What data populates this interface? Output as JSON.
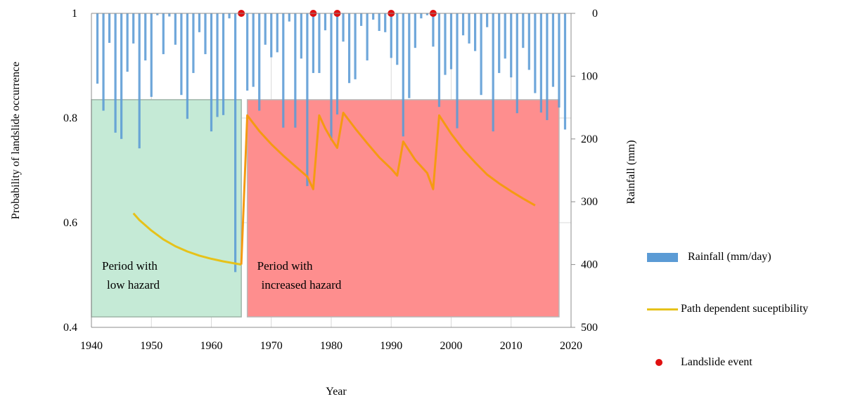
{
  "chart_data": {
    "type": "bar+line",
    "x": {
      "label": "Year",
      "range": [
        1940,
        2020
      ],
      "ticks": [
        "1940",
        "1950",
        "1960",
        "1970",
        "1980",
        "1990",
        "2000",
        "2010",
        "2020"
      ]
    },
    "y_left": {
      "label": "Probability of landslide occurrence",
      "range": [
        0.4,
        1.0
      ],
      "ticks": [
        "0.4",
        "0.6",
        "0.8",
        "1"
      ]
    },
    "y_right": {
      "label": "Rainfall (mm)",
      "range": [
        0,
        500
      ],
      "inverted": true,
      "ticks": [
        "0",
        "100",
        "200",
        "300",
        "400",
        "500"
      ]
    },
    "grid": true,
    "regions": [
      {
        "label_line1": "Period with",
        "label_line2": "low hazard",
        "x_start": 1940,
        "x_end": 1965,
        "color": "#c5ead6"
      },
      {
        "label_line1": "Period with",
        "label_line2": "increased hazard",
        "x_start": 1966,
        "x_end": 2018,
        "color": "#fe8e8e"
      }
    ],
    "region_y_range": [
      0.42,
      0.835
    ],
    "series": [
      {
        "name": "Rainfall  (mm/day)",
        "type": "bar",
        "axis": "right",
        "color": "#5b9bd5",
        "x": [
          1941,
          1942,
          1943,
          1944,
          1945,
          1946,
          1947,
          1948,
          1949,
          1950,
          1951,
          1952,
          1953,
          1954,
          1955,
          1956,
          1957,
          1958,
          1959,
          1960,
          1961,
          1962,
          1963,
          1964,
          1965,
          1966,
          1967,
          1968,
          1969,
          1970,
          1971,
          1972,
          1973,
          1974,
          1975,
          1976,
          1977,
          1978,
          1979,
          1980,
          1981,
          1982,
          1983,
          1984,
          1985,
          1986,
          1987,
          1988,
          1989,
          1990,
          1991,
          1992,
          1993,
          1994,
          1995,
          1996,
          1997,
          1998,
          1999,
          2000,
          2001,
          2002,
          2003,
          2004,
          2005,
          2006,
          2007,
          2008,
          2009,
          2010,
          2011,
          2012,
          2013,
          2014,
          2015,
          2016,
          2017,
          2018,
          2019
        ],
        "values": [
          112,
          155,
          47,
          190,
          200,
          93,
          48,
          215,
          75,
          133,
          3,
          65,
          5,
          50,
          130,
          168,
          95,
          30,
          65,
          188,
          165,
          162,
          8,
          412,
          3,
          123,
          117,
          155,
          50,
          70,
          62,
          182,
          13,
          182,
          72,
          275,
          95,
          95,
          27,
          202,
          161,
          45,
          111,
          105,
          20,
          75,
          10,
          28,
          30,
          71,
          82,
          196,
          135,
          55,
          8,
          3,
          53,
          149,
          98,
          89,
          183,
          35,
          48,
          60,
          130,
          22,
          188,
          95,
          72,
          102,
          159,
          55,
          90,
          127,
          158,
          170,
          117,
          150,
          185
        ]
      },
      {
        "name": "Path dependent suceptibility",
        "type": "line",
        "axis": "left",
        "color": "#e6c21a",
        "x": [
          1947,
          1948,
          1950,
          1952,
          1954,
          1956,
          1958,
          1960,
          1962,
          1964,
          1965
        ],
        "values": [
          0.618,
          0.605,
          0.585,
          0.568,
          0.555,
          0.545,
          0.537,
          0.531,
          0.526,
          0.522,
          0.52
        ]
      },
      {
        "name": "Path dependent suceptibility",
        "type": "line",
        "axis": "left",
        "color": "#f59a12",
        "x": [
          1965,
          1966,
          1968,
          1970,
          1972,
          1974,
          1976,
          1977,
          1978,
          1979,
          1980,
          1981,
          1982,
          1984,
          1986,
          1988,
          1990,
          1991,
          1992,
          1994,
          1996,
          1997,
          1998,
          2000,
          2002,
          2004,
          2006,
          2008,
          2010,
          2012,
          2014
        ],
        "values": [
          0.52,
          0.805,
          0.775,
          0.75,
          0.728,
          0.708,
          0.688,
          0.664,
          0.805,
          0.78,
          0.76,
          0.743,
          0.81,
          0.78,
          0.752,
          0.725,
          0.703,
          0.69,
          0.755,
          0.72,
          0.695,
          0.664,
          0.805,
          0.77,
          0.74,
          0.715,
          0.692,
          0.675,
          0.66,
          0.646,
          0.633
        ]
      },
      {
        "name": "Landslide event",
        "type": "scatter",
        "axis": "left",
        "color": "#e01010",
        "x": [
          1965,
          1977,
          1981,
          1990,
          1997
        ],
        "values": [
          1.0,
          1.0,
          1.0,
          1.0,
          1.0
        ]
      }
    ]
  },
  "legend": {
    "rainfall": "Rainfall  (mm/day)",
    "susceptibility": "Path dependent suceptibility",
    "event": "Landslide event"
  }
}
